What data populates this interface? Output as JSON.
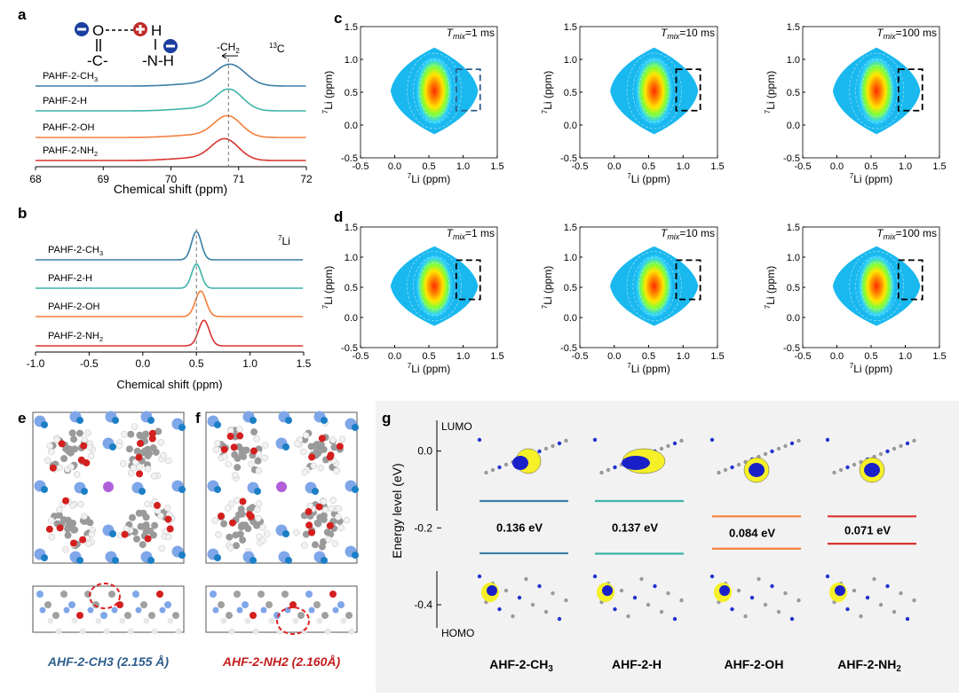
{
  "panel_labels": {
    "a": "a",
    "b": "b",
    "c": "c",
    "d": "d",
    "e": "e",
    "f": "f",
    "g": "g"
  },
  "colors": {
    "ch3": "#3c7ea6",
    "h": "#3fb3a8",
    "oh": "#f47f3a",
    "nh2": "#d8332e",
    "map_base": "#19b8ef"
  },
  "chart_data": [
    {
      "id": "a",
      "type": "line",
      "nucleus_label": "13C",
      "xlabel": "Chemical shift (ppm)",
      "xlim": [
        68,
        72
      ],
      "xticks": [
        68,
        69,
        70,
        71,
        72
      ],
      "x_reversed": false,
      "peak_center": 70.85,
      "shift_annotation": "-CH2",
      "series": [
        {
          "name": "PAHF-2-CH3",
          "color": "#3c7ea6",
          "peak": 70.88,
          "width": 0.22,
          "height": 0.9
        },
        {
          "name": "PAHF-2-H",
          "color": "#3fb3a8",
          "peak": 70.86,
          "width": 0.2,
          "height": 0.9
        },
        {
          "name": "PAHF-2-OH",
          "color": "#f47f3a",
          "peak": 70.84,
          "width": 0.2,
          "height": 0.9
        },
        {
          "name": "PAHF-2-NH2",
          "color": "#d8332e",
          "peak": 70.8,
          "width": 0.2,
          "height": 0.9
        }
      ]
    },
    {
      "id": "b",
      "type": "line",
      "nucleus_label": "7Li",
      "xlabel": "Chemical shift (ppm)",
      "xlim": [
        -1.0,
        1.5
      ],
      "xticks": [
        -1.0,
        -0.5,
        0.0,
        0.5,
        1.0,
        1.5
      ],
      "peak_center": 0.5,
      "series": [
        {
          "name": "PAHF-2-CH3",
          "color": "#3c7ea6",
          "peak": 0.5,
          "width": 0.045,
          "height": 1.0
        },
        {
          "name": "PAHF-2-H",
          "color": "#3fb3a8",
          "peak": 0.5,
          "width": 0.045,
          "height": 0.85
        },
        {
          "name": "PAHF-2-OH",
          "color": "#f47f3a",
          "peak": 0.54,
          "width": 0.05,
          "height": 0.9
        },
        {
          "name": "PAHF-2-NH2",
          "color": "#d8332e",
          "peak": 0.57,
          "width": 0.05,
          "height": 0.9
        }
      ]
    },
    {
      "id": "c-d",
      "type": "heatmap",
      "xlabel": "7Li (ppm)",
      "ylabel": "7Li (ppm)",
      "xlim": [
        -0.5,
        1.5
      ],
      "ylim": [
        -0.5,
        1.5
      ],
      "xticks": [
        -0.5,
        0.0,
        0.5,
        1.0,
        1.5
      ],
      "yticks": [
        -0.5,
        0.0,
        0.5,
        1.0,
        1.5
      ],
      "maps": [
        {
          "row": "c",
          "tmix": "=1 ms",
          "box_dash": "blue",
          "box": [
            0.9,
            1.25,
            0.22,
            0.85
          ]
        },
        {
          "row": "c",
          "tmix": "=10 ms",
          "box_dash": "black",
          "box": [
            0.9,
            1.25,
            0.22,
            0.85
          ]
        },
        {
          "row": "c",
          "tmix": "=100 ms",
          "box_dash": "black",
          "box": [
            0.9,
            1.25,
            0.22,
            0.85
          ]
        },
        {
          "row": "d",
          "tmix": "=1 ms",
          "box_dash": "black",
          "box": [
            0.9,
            1.25,
            0.3,
            0.95
          ]
        },
        {
          "row": "d",
          "tmix": "=10 ms",
          "box_dash": "black",
          "box": [
            0.9,
            1.25,
            0.3,
            0.95
          ]
        },
        {
          "row": "d",
          "tmix": "=100 ms",
          "box_dash": "black",
          "box": [
            0.9,
            1.25,
            0.3,
            0.95
          ]
        }
      ]
    },
    {
      "id": "g",
      "type": "bar",
      "ylabel": "Energy level (eV)",
      "ylim": [
        -0.46,
        0.08
      ],
      "yticks": [
        0.0,
        -0.2,
        -0.4
      ],
      "top_label": "LUMO",
      "bottom_label": "HOMO",
      "categories": [
        "AHF-2-CH3",
        "AHF-2-H",
        "AHF-2-OH",
        "AHF-2-NH2"
      ],
      "series": [
        {
          "name": "LUMO",
          "values": [
            -0.13,
            -0.13,
            -0.17,
            -0.17
          ]
        },
        {
          "name": "HOMO",
          "values": [
            -0.266,
            -0.267,
            -0.254,
            -0.241
          ]
        }
      ],
      "gap_labels": [
        "0.136 eV",
        "0.137 eV",
        "0.084 eV",
        "0.071 eV"
      ],
      "colors": [
        "#3c7ea6",
        "#3fb3a8",
        "#f47f3a",
        "#d8332e"
      ]
    }
  ],
  "panel_e": {
    "caption": "AHF-2-CH3 (2.155 Å)",
    "color": "#2e5d8c"
  },
  "panel_f": {
    "caption": "AHF-2-NH2 (2.160Å)",
    "color": "#c21d1d"
  },
  "scheme": {
    "c_label": "-C-",
    "o_label": "O",
    "h_label": "H",
    "n_label": "-N-H"
  }
}
